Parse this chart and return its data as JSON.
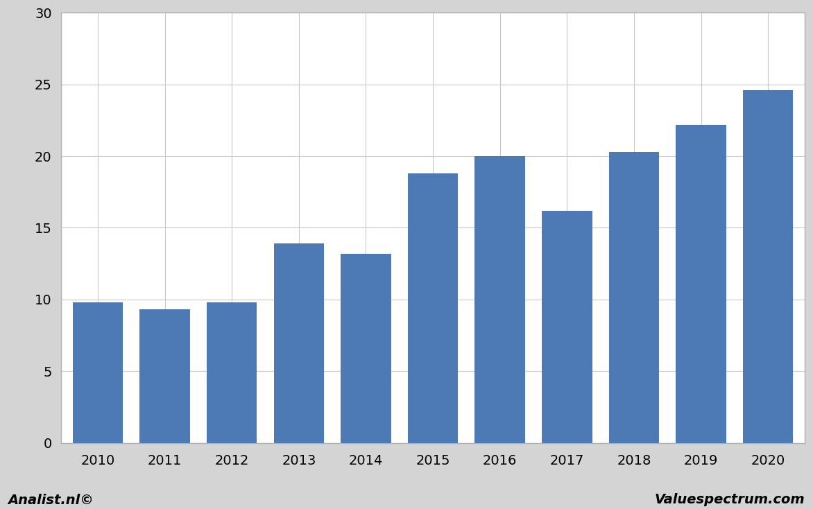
{
  "categories": [
    "2010",
    "2011",
    "2012",
    "2013",
    "2014",
    "2015",
    "2016",
    "2017",
    "2018",
    "2019",
    "2020"
  ],
  "values": [
    9.8,
    9.3,
    9.8,
    13.9,
    13.2,
    18.8,
    20.0,
    16.2,
    20.3,
    22.2,
    24.6
  ],
  "bar_color": "#4d7ab5",
  "ylim": [
    0,
    30
  ],
  "yticks": [
    0,
    5,
    10,
    15,
    20,
    25,
    30
  ],
  "outer_background_color": "#d4d4d4",
  "plot_background_color": "#ffffff",
  "grid_color": "#c8c8c8",
  "bar_width": 0.75,
  "footer_left": "Analist.nl©",
  "footer_right": "Valuespectrum.com",
  "footer_fontsize": 14,
  "tick_fontsize": 14,
  "border_color": "#b0b0b0"
}
